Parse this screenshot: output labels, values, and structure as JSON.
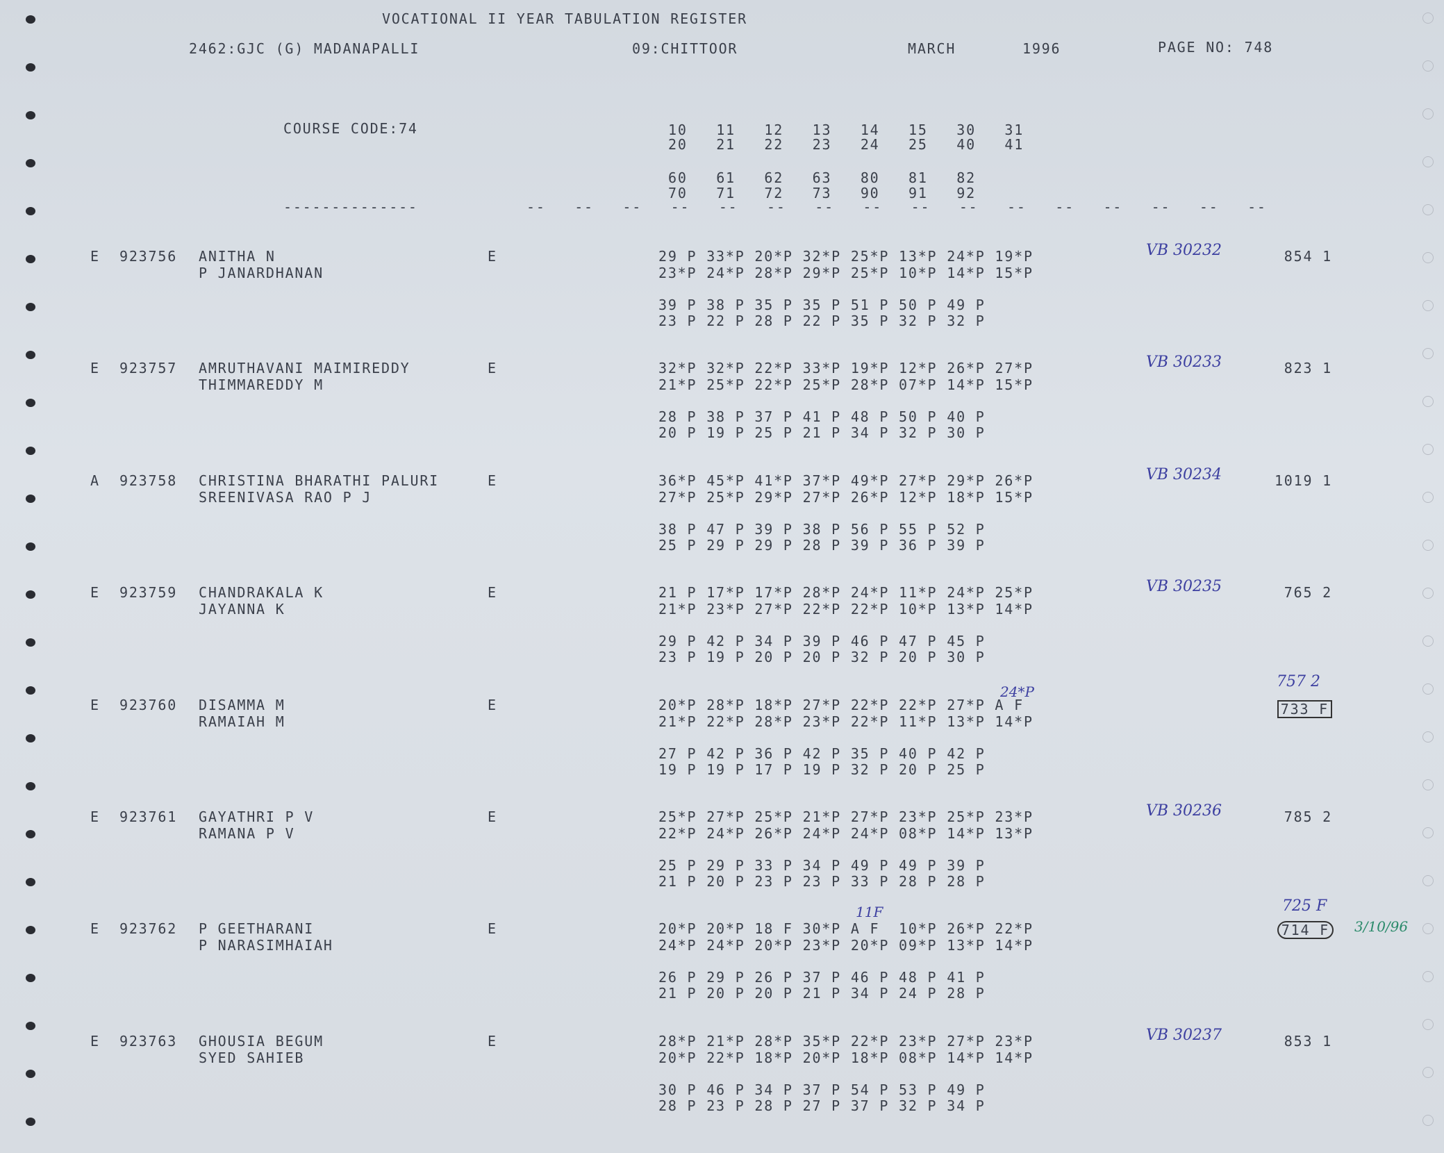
{
  "header": {
    "title": "VOCATIONAL II YEAR TABULATION REGISTER",
    "college": "2462:GJC (G) MADANAPALLI",
    "district": "09:CHITTOOR",
    "month": "MARCH",
    "year": "1996",
    "page": "PAGE NO: 748",
    "course_code": "COURSE CODE:74",
    "subject_codes": [
      "10   11   12   13   14   15   30   31",
      "20   21   22   23   24   25   40   41",
      "60   61   62   63   80   81   82",
      "70   71   72   73   90   91   92"
    ],
    "rule_left": "--------------",
    "rule_right": "--   --   --   --   --   --   --   --   --   --   --   --   --   --   --   --"
  },
  "records": [
    {
      "status": "E",
      "roll": "923756",
      "name": "ANITHA N",
      "parent": "P JANARDHANAN",
      "medium": "E",
      "marks": [
        "29 P 33*P 20*P 32*P 25*P 13*P 24*P 19*P",
        "23*P 24*P 28*P 29*P 25*P 10*P 14*P 15*P",
        "39 P 38 P 35 P 35 P 51 P 50 P 49 P",
        "23 P 22 P 28 P 22 P 35 P 32 P 32 P"
      ],
      "ref": "VB 30232",
      "total": "854 1"
    },
    {
      "status": "E",
      "roll": "923757",
      "name": "AMRUTHAVANI MAIMIREDDY",
      "parent": "THIMMAREDDY M",
      "medium": "E",
      "marks": [
        "32*P 32*P 22*P 33*P 19*P 12*P 26*P 27*P",
        "21*P 25*P 22*P 25*P 28*P 07*P 14*P 15*P",
        "28 P 38 P 37 P 41 P 48 P 50 P 40 P",
        "20 P 19 P 25 P 21 P 34 P 32 P 30 P"
      ],
      "ref": "VB 30233",
      "total": "823 1"
    },
    {
      "status": "A",
      "roll": "923758",
      "name": "CHRISTINA BHARATHI PALURI",
      "parent": "SREENIVASA RAO P J",
      "medium": "E",
      "marks": [
        "36*P 45*P 41*P 37*P 49*P 27*P 29*P 26*P",
        "27*P 25*P 29*P 27*P 26*P 12*P 18*P 15*P",
        "38 P 47 P 39 P 38 P 56 P 55 P 52 P",
        "25 P 29 P 29 P 28 P 39 P 36 P 39 P"
      ],
      "ref": "VB 30234",
      "total": "1019 1"
    },
    {
      "status": "E",
      "roll": "923759",
      "name": "CHANDRAKALA K",
      "parent": "JAYANNA K",
      "medium": "E",
      "marks": [
        "21 P 17*P 17*P 28*P 24*P 11*P 24*P 25*P",
        "21*P 23*P 27*P 22*P 22*P 10*P 13*P 14*P",
        "29 P 42 P 34 P 39 P 46 P 47 P 45 P",
        "23 P 19 P 20 P 20 P 32 P 20 P 30 P"
      ],
      "ref": "VB 30235",
      "total": "765 2"
    },
    {
      "status": "E",
      "roll": "923760",
      "name": "DISAMMA M",
      "parent": "RAMAIAH M",
      "medium": "E",
      "marks": [
        "20*P 28*P 18*P 27*P 22*P 22*P 27*P A F",
        "21*P 22*P 28*P 23*P 22*P 11*P 13*P 14*P",
        "27 P 42 P 36 P 42 P 35 P 40 P 42 P",
        "19 P 19 P 17 P 19 P 32 P 20 P 25 P"
      ],
      "mark_note": "24*P",
      "total": "733 F",
      "total_note": "757 2"
    },
    {
      "status": "E",
      "roll": "923761",
      "name": "GAYATHRI P V",
      "parent": "RAMANA P V",
      "medium": "E",
      "marks": [
        "25*P 27*P 25*P 21*P 27*P 23*P 25*P 23*P",
        "22*P 24*P 26*P 24*P 24*P 08*P 14*P 13*P",
        "25 P 29 P 33 P 34 P 49 P 49 P 39 P",
        "21 P 20 P 23 P 23 P 33 P 28 P 28 P"
      ],
      "ref": "VB 30236",
      "total": "785 2"
    },
    {
      "status": "E",
      "roll": "923762",
      "name": "P GEETHARANI",
      "parent": "P NARASIMHAIAH",
      "medium": "E",
      "marks": [
        "20*P 20*P 18 F 30*P A F  10*P 26*P 22*P",
        "24*P 24*P 20*P 23*P 20*P 09*P 13*P 14*P",
        "26 P 29 P 26 P 37 P 46 P 48 P 41 P",
        "21 P 20 P 20 P 21 P 34 P 24 P 28 P"
      ],
      "mark_note": "11F",
      "total": "714 F",
      "total_note": "725 F",
      "date_note": "3/10/96"
    },
    {
      "status": "E",
      "roll": "923763",
      "name": "GHOUSIA BEGUM",
      "parent": "SYED SAHIEB",
      "medium": "E",
      "marks": [
        "28*P 21*P 28*P 35*P 22*P 23*P 27*P 23*P",
        "20*P 22*P 18*P 20*P 18*P 08*P 14*P 14*P",
        "30 P 46 P 34 P 37 P 54 P 53 P 49 P",
        "28 P 23 P 28 P 27 P 37 P 32 P 34 P"
      ],
      "ref": "VB 30237",
      "total": "853 1"
    }
  ]
}
